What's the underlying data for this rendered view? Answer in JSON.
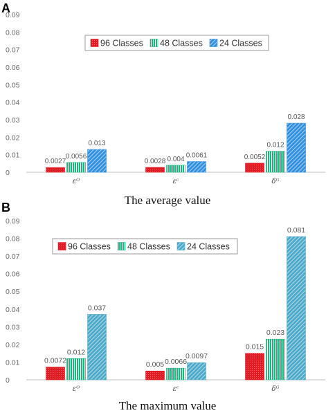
{
  "chart_data": [
    {
      "panel": "A",
      "type": "bar",
      "caption": "The average value",
      "categories": [
        "εᴼ",
        "εᶜ",
        "δᴳ"
      ],
      "series": [
        {
          "name": "96 Classes",
          "values": [
            0.0027,
            0.0028,
            0.0052
          ],
          "labels": [
            "0.0027",
            "0.0028",
            "0.0052"
          ]
        },
        {
          "name": "48 Classes",
          "values": [
            0.0056,
            0.004,
            0.012
          ],
          "labels": [
            "0.0056",
            "0.004",
            "0.012"
          ]
        },
        {
          "name": "24 Classes",
          "values": [
            0.013,
            0.0061,
            0.028
          ],
          "labels": [
            "0.013",
            "0.0061",
            "0.028"
          ]
        }
      ],
      "ylim": [
        0,
        0.09
      ],
      "yticks": [
        "0",
        "0.01",
        "0.02",
        "0.03",
        "0.04",
        "0.05",
        "0.06",
        "0.07",
        "0.08",
        "0.09"
      ],
      "legend": "top-center",
      "grid": false
    },
    {
      "panel": "B",
      "type": "bar",
      "caption": "The maximum value",
      "categories": [
        "εᴼ",
        "εᶜ",
        "δᴳ"
      ],
      "series": [
        {
          "name": "96 Classes",
          "values": [
            0.0072,
            0.005,
            0.015
          ],
          "labels": [
            "0.0072",
            "0.005",
            "0.015"
          ]
        },
        {
          "name": "48 Classes",
          "values": [
            0.012,
            0.0066,
            0.023
          ],
          "labels": [
            "0.012",
            "0.0066",
            "0.023"
          ]
        },
        {
          "name": "24 Classes",
          "values": [
            0.037,
            0.0097,
            0.081
          ],
          "labels": [
            "0.037",
            "0.0097",
            "0.081"
          ]
        }
      ],
      "ylim": [
        0,
        0.09
      ],
      "yticks": [
        "0",
        "0.01",
        "0.02",
        "0.03",
        "0.04",
        "0.05",
        "0.06",
        "0.07",
        "0.08",
        "0.09"
      ],
      "legend": "top-left",
      "grid": false
    }
  ],
  "colors": {
    "s96": "#e31b23",
    "s48": "#19b77a",
    "s24a": "#2f8fe0",
    "s24b": "#4aa8c8",
    "axis": "#bdbdbd",
    "tick_text": "#666666",
    "label_text": "#555555"
  }
}
